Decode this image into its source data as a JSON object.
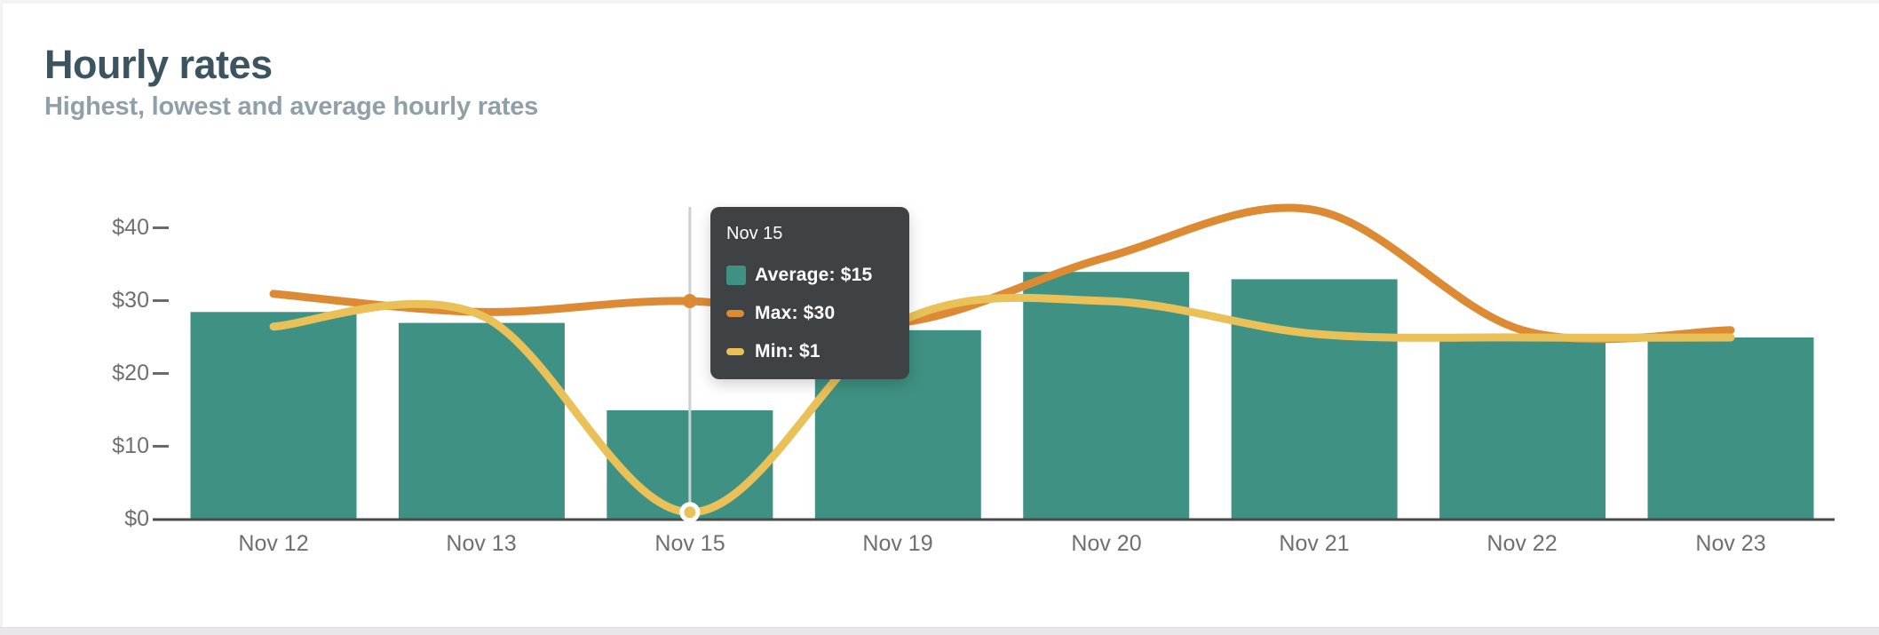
{
  "page": {
    "title": "Hourly rates",
    "subtitle": "Highest, lowest and average hourly rates"
  },
  "chart_data": {
    "type": "bar",
    "title": "Hourly rates",
    "subtitle": "Highest, lowest and average hourly rates",
    "categories": [
      "Nov 12",
      "Nov 13",
      "Nov 15",
      "Nov 19",
      "Nov 20",
      "Nov 21",
      "Nov 22",
      "Nov 23"
    ],
    "series": [
      {
        "name": "Average",
        "type": "bar",
        "color": "#3f9183",
        "values": [
          28.5,
          27,
          15,
          26,
          34,
          33,
          24.5,
          25
        ]
      },
      {
        "name": "Max",
        "type": "line",
        "color": "#dd8a35",
        "values": [
          31,
          28.5,
          30,
          27,
          36,
          42.5,
          26,
          26
        ]
      },
      {
        "name": "Min",
        "type": "line",
        "color": "#eac158",
        "values": [
          26.5,
          28,
          1,
          27,
          30,
          25.5,
          25,
          25
        ]
      }
    ],
    "xlabel": "",
    "ylabel": "",
    "y_ticks": [
      "$0",
      "$10",
      "$20",
      "$30",
      "$40"
    ],
    "y_tick_values": [
      0,
      10,
      20,
      30,
      40
    ],
    "ylim": [
      0,
      44
    ],
    "grid": false,
    "legend_position": "tooltip-only",
    "line_smoothing": true
  },
  "tooltip": {
    "title": "Nov 15",
    "rows": [
      {
        "series": "Average",
        "label": "Average: $15",
        "color": "#3f9183",
        "swatch": "square"
      },
      {
        "series": "Max",
        "label": "Max: $30",
        "color": "#dd8a35",
        "swatch": "dash"
      },
      {
        "series": "Min",
        "label": "Min: $1",
        "color": "#eac158",
        "swatch": "dash"
      }
    ],
    "highlight": {
      "category": "Nov 15",
      "average_value": 15,
      "max_value": 30,
      "min_value": 1
    }
  },
  "style_colors": {
    "title_text": "#3c5460",
    "subtitle_text": "#90a0a8",
    "axis_text": "#6f6f6f",
    "axis_line": "#4a4a4a",
    "crosshair": "#cfcfcf",
    "tooltip_bg": "#3f4245",
    "page_edge": "#f3f2f4",
    "page_bottom_strip": "#e9e7ea"
  }
}
